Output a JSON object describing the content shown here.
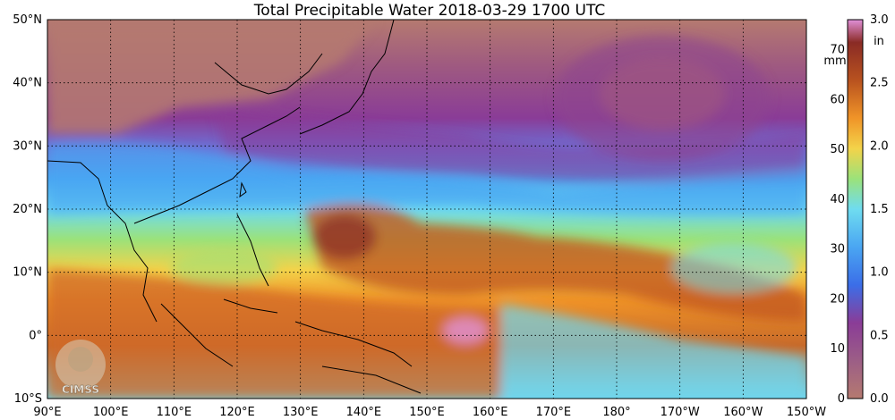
{
  "title": "Total Precipitable Water  2018-03-29 1700 UTC",
  "map": {
    "lat_labels": [
      "50°N",
      "40°N",
      "30°N",
      "20°N",
      "10°N",
      "0°",
      "10°S"
    ],
    "lon_labels": [
      "90°E",
      "100°E",
      "110°E",
      "120°E",
      "130°E",
      "140°E",
      "150°E",
      "160°E",
      "170°E",
      "180°",
      "170°W",
      "160°W",
      "150°W"
    ],
    "logo_text": "CIMSS"
  },
  "colorbar": {
    "mm_unit": "mm",
    "mm_ticks": [
      "70",
      "60",
      "50",
      "40",
      "30",
      "20",
      "10",
      "0"
    ],
    "in_unit": "in",
    "in_ticks": [
      "3.0",
      "2.5",
      "2.0",
      "1.5",
      "1.0",
      "0.5",
      "0.0"
    ]
  },
  "colors": {
    "dry": "#b57a70",
    "purple": "#8a3c97",
    "blue": "#4aa6f2",
    "cyan": "#6fdcf0",
    "green": "#9be27a",
    "yellow": "#f3d34a",
    "orange": "#f09428",
    "brown": "#b8521f",
    "dark_red": "#8a2b25",
    "pink": "#e090d8"
  }
}
